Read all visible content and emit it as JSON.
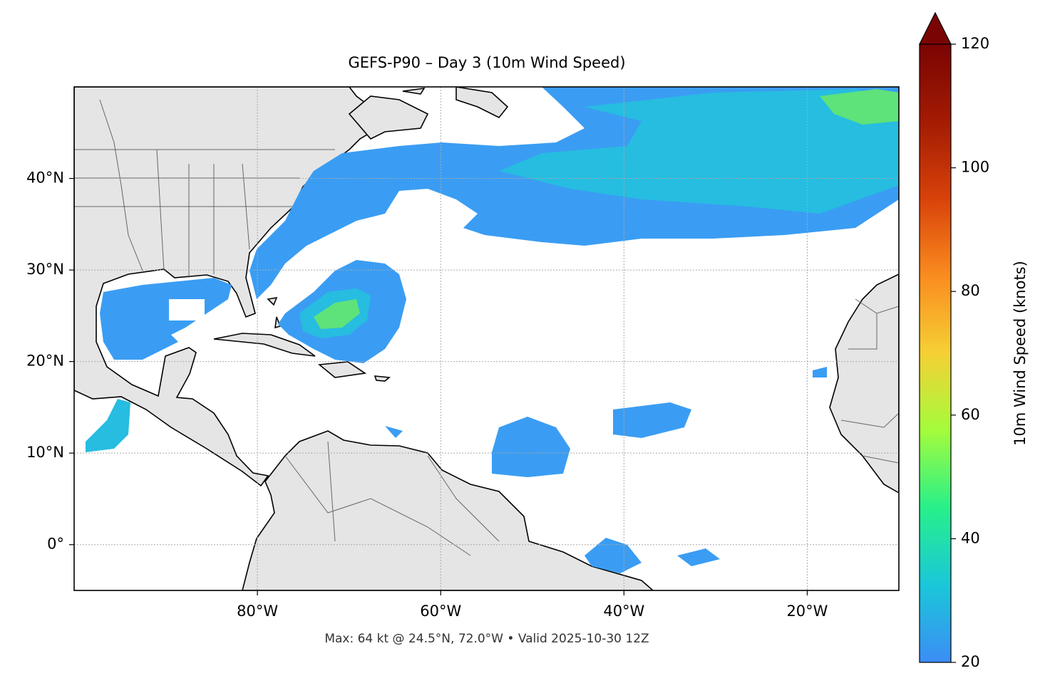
{
  "chart_data": {
    "type": "map",
    "title": "GEFS-P90 – Day 3 (10m Wind Speed)",
    "footnote": "Max: 64 kt @ 24.5°N, 72.0°W • Valid 2025-10-30 12Z",
    "xlim": [
      -100,
      -10
    ],
    "ylim": [
      -5,
      50
    ],
    "xticks": [
      {
        "value": -80,
        "label": "80°W"
      },
      {
        "value": -60,
        "label": "60°W"
      },
      {
        "value": -40,
        "label": "40°W"
      },
      {
        "value": -20,
        "label": "20°W"
      }
    ],
    "yticks": [
      {
        "value": 0,
        "label": "0°"
      },
      {
        "value": 10,
        "label": "10°N"
      },
      {
        "value": 20,
        "label": "20°N"
      },
      {
        "value": 30,
        "label": "30°N"
      },
      {
        "value": 40,
        "label": "40°N"
      }
    ],
    "grid": true,
    "colorbar": {
      "label": "10m Wind Speed (knots)",
      "lim": [
        20,
        120
      ],
      "ticks": [
        20,
        40,
        60,
        80,
        100,
        120
      ],
      "extend": "max",
      "colors": [
        "#3c8df5",
        "#1ac7d9",
        "#27f08a",
        "#a4fc3c",
        "#f5d034",
        "#fa8c1f",
        "#d8420a",
        "#a31b03",
        "#7a0403"
      ]
    }
  }
}
